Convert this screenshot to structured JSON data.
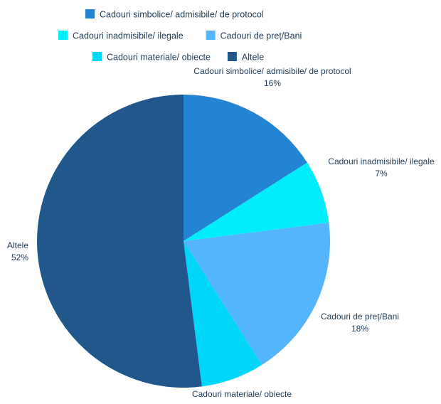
{
  "chart_data": {
    "type": "pie",
    "legend": {
      "position": "top",
      "rows": [
        [
          0
        ],
        [
          1,
          2
        ],
        [
          3,
          4
        ]
      ]
    },
    "slices": [
      {
        "label": "Cadouri simbolice/ admisibile/ de protocol",
        "value": 16,
        "pct_label": "16%",
        "color": "#2384d3"
      },
      {
        "label": "Cadouri inadmisibile/ ilegale",
        "value": 7,
        "pct_label": "7%",
        "color": "#00eefc"
      },
      {
        "label": "Cadouri de preț/Bani",
        "value": 18,
        "pct_label": "18%",
        "color": "#54b5fd"
      },
      {
        "label": "Cadouri materiale/ obiecte",
        "value": 7,
        "pct_label": "",
        "color": "#00d6f7"
      },
      {
        "label": "Altele",
        "value": 52,
        "pct_label": "52%",
        "color": "#21578a"
      }
    ]
  }
}
